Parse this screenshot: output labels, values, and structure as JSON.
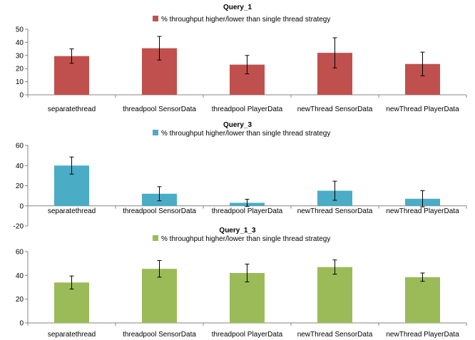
{
  "chart_data": [
    {
      "type": "bar",
      "title": "Query_1",
      "legend": "% throughput higher/lower than single thread strategy",
      "legend_position": "top",
      "color": "#c0504d",
      "categories": [
        "separatethread",
        "threadpool SensorData",
        "threadpool PlayerData",
        "newThread SensorData",
        "newThread PlayerData"
      ],
      "values": [
        29.5,
        35.5,
        23,
        32,
        23.5
      ],
      "errors": [
        5.5,
        9,
        7,
        11.5,
        9
      ],
      "ylim": [
        0,
        50
      ],
      "yticks": [
        0,
        10,
        20,
        30,
        40,
        50
      ],
      "grid": false
    },
    {
      "type": "bar",
      "title": "Query_3",
      "legend": "% throughput higher/lower than single thread strategy",
      "legend_position": "top",
      "color": "#4bacc6",
      "categories": [
        "separatethread",
        "threadpool SensorData",
        "threadpool PlayerData",
        "newThread SensorData",
        "newThread PlayerData"
      ],
      "values": [
        40,
        12,
        3,
        15,
        7
      ],
      "errors": [
        8.5,
        7,
        3.5,
        9.5,
        8
      ],
      "ylim": [
        -20,
        60
      ],
      "yticks": [
        -20,
        0,
        20,
        40,
        60
      ],
      "grid": false
    },
    {
      "type": "bar",
      "title": "Query_1_3",
      "legend": "% throughput higher/lower than single thread strategy",
      "legend_position": "top",
      "color": "#9bbb59",
      "categories": [
        "separatethread",
        "threadpool SensorData",
        "threadpool PlayerData",
        "newThread SensorData",
        "newThread PlayerData"
      ],
      "values": [
        34,
        45.5,
        42,
        47,
        38.5
      ],
      "errors": [
        5.5,
        7,
        7.5,
        6,
        3.5
      ],
      "ylim": [
        0,
        60
      ],
      "yticks": [
        0,
        20,
        40,
        60
      ],
      "grid": false
    }
  ]
}
